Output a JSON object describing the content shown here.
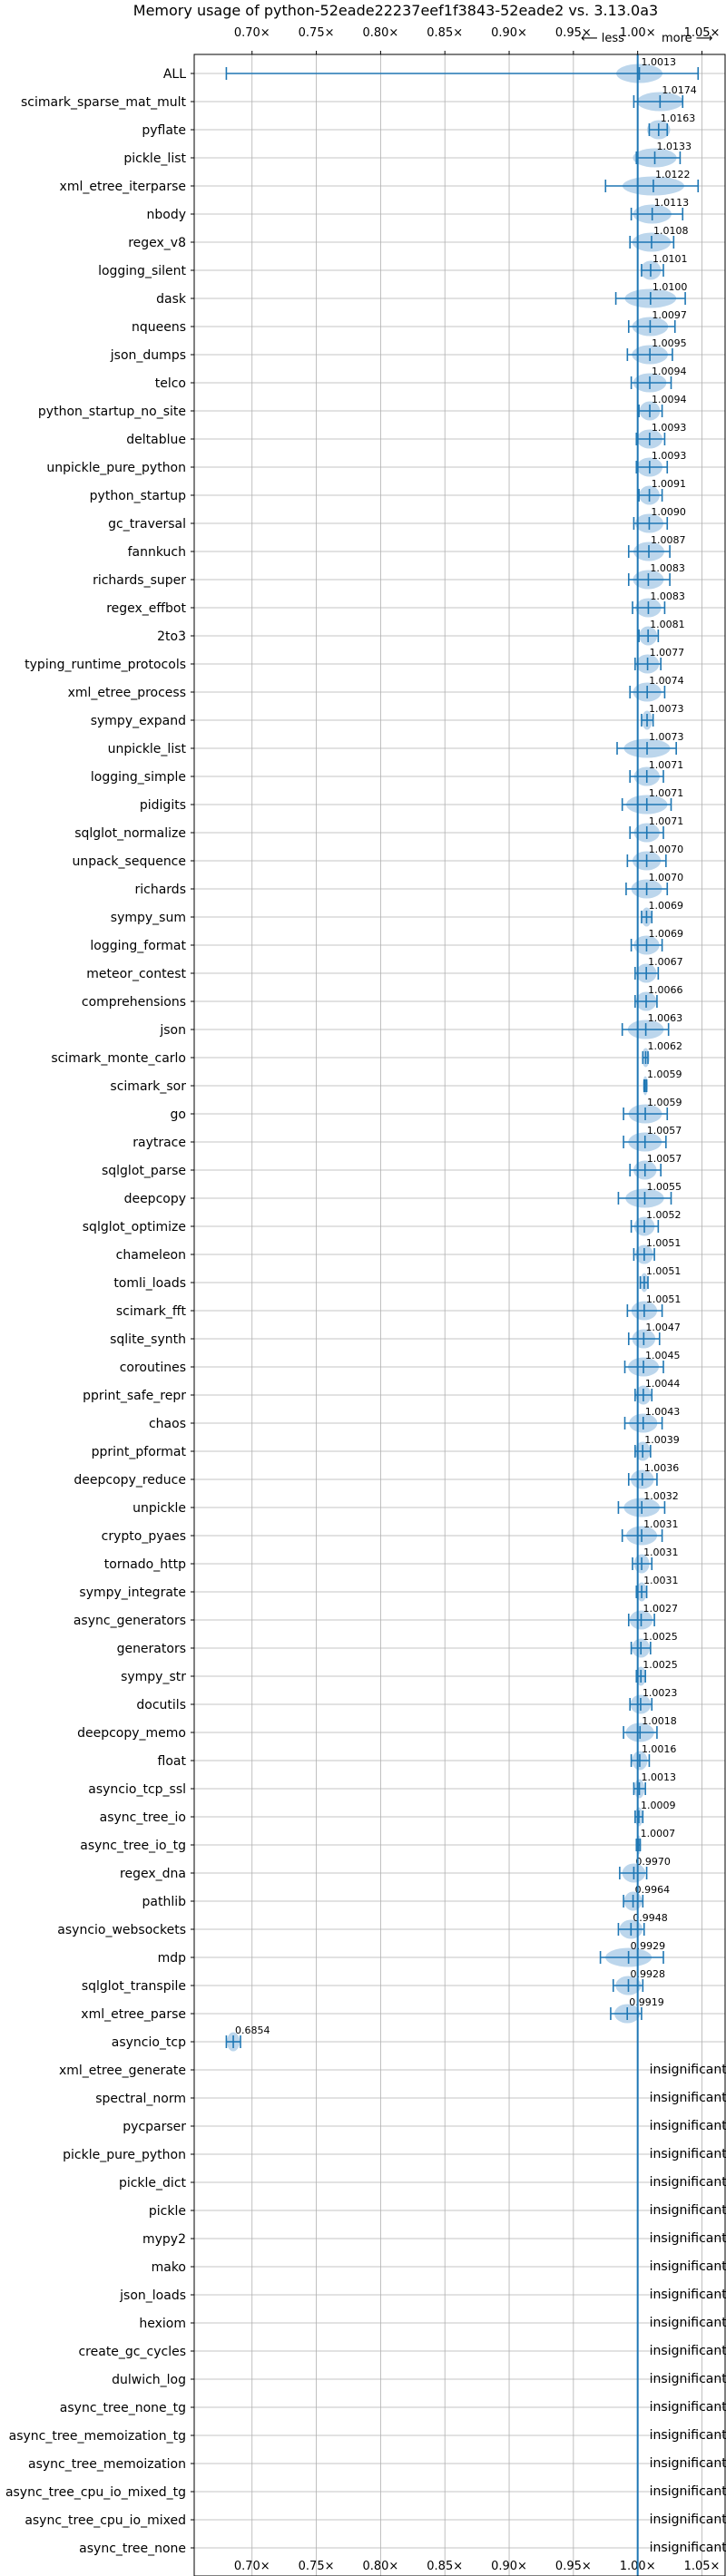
{
  "chart_data": {
    "type": "violin",
    "title": "Memory usage of python-52eade22237eef1f3843-52eade2 vs. 3.13.0a3",
    "direction_labels": [
      "⟵ less",
      "more ⟶"
    ],
    "xlim": [
      0.655,
      1.068
    ],
    "x_ticks": [
      0.7,
      0.75,
      0.8,
      0.85,
      0.9,
      0.95,
      1.0,
      1.05
    ],
    "x_tick_labels": [
      "0.70×",
      "0.75×",
      "0.80×",
      "0.85×",
      "0.90×",
      "0.95×",
      "1.00×",
      "1.05×"
    ],
    "reference_line": 1.0,
    "grid": true,
    "insignificant_label": "insignificant",
    "benchmarks": [
      {
        "name": "ALL",
        "value": "1.0013",
        "mean": 1.0013,
        "lo": 0.68,
        "hi": 1.047,
        "w": 0.018
      },
      {
        "name": "scimark_sparse_mat_mult",
        "value": "1.0174",
        "mean": 1.0174,
        "lo": 0.997,
        "hi": 1.035,
        "w": 0.018
      },
      {
        "name": "pyflate",
        "value": "1.0163",
        "mean": 1.0163,
        "lo": 1.009,
        "hi": 1.023,
        "w": 0.009
      },
      {
        "name": "pickle_list",
        "value": "1.0133",
        "mean": 1.0133,
        "lo": 0.999,
        "hi": 1.033,
        "w": 0.017
      },
      {
        "name": "xml_etree_iterparse",
        "value": "1.0122",
        "mean": 1.0122,
        "lo": 0.975,
        "hi": 1.047,
        "w": 0.024
      },
      {
        "name": "nbody",
        "value": "1.0113",
        "mean": 1.0113,
        "lo": 0.995,
        "hi": 1.035,
        "w": 0.015
      },
      {
        "name": "regex_v8",
        "value": "1.0108",
        "mean": 1.0108,
        "lo": 0.994,
        "hi": 1.028,
        "w": 0.015
      },
      {
        "name": "logging_silent",
        "value": "1.0101",
        "mean": 1.0101,
        "lo": 1.003,
        "hi": 1.02,
        "w": 0.008
      },
      {
        "name": "dask",
        "value": "1.0100",
        "mean": 1.01,
        "lo": 0.983,
        "hi": 1.037,
        "w": 0.02
      },
      {
        "name": "nqueens",
        "value": "1.0097",
        "mean": 1.0097,
        "lo": 0.993,
        "hi": 1.029,
        "w": 0.014
      },
      {
        "name": "json_dumps",
        "value": "1.0095",
        "mean": 1.0095,
        "lo": 0.992,
        "hi": 1.027,
        "w": 0.014
      },
      {
        "name": "telco",
        "value": "1.0094",
        "mean": 1.0094,
        "lo": 0.995,
        "hi": 1.026,
        "w": 0.013
      },
      {
        "name": "python_startup_no_site",
        "value": "1.0094",
        "mean": 1.0094,
        "lo": 1.001,
        "hi": 1.019,
        "w": 0.008
      },
      {
        "name": "deltablue",
        "value": "1.0093",
        "mean": 1.0093,
        "lo": 0.999,
        "hi": 1.021,
        "w": 0.01
      },
      {
        "name": "unpickle_pure_python",
        "value": "1.0093",
        "mean": 1.0093,
        "lo": 0.999,
        "hi": 1.023,
        "w": 0.01
      },
      {
        "name": "python_startup",
        "value": "1.0091",
        "mean": 1.0091,
        "lo": 1.001,
        "hi": 1.019,
        "w": 0.008
      },
      {
        "name": "gc_traversal",
        "value": "1.0090",
        "mean": 1.009,
        "lo": 0.997,
        "hi": 1.023,
        "w": 0.011
      },
      {
        "name": "fannkuch",
        "value": "1.0087",
        "mean": 1.0087,
        "lo": 0.993,
        "hi": 1.025,
        "w": 0.012
      },
      {
        "name": "richards_super",
        "value": "1.0083",
        "mean": 1.0083,
        "lo": 0.993,
        "hi": 1.025,
        "w": 0.012
      },
      {
        "name": "regex_effbot",
        "value": "1.0083",
        "mean": 1.0083,
        "lo": 0.996,
        "hi": 1.021,
        "w": 0.01
      },
      {
        "name": "2to3",
        "value": "1.0081",
        "mean": 1.0081,
        "lo": 1.001,
        "hi": 1.016,
        "w": 0.007
      },
      {
        "name": "typing_runtime_protocols",
        "value": "1.0077",
        "mean": 1.0077,
        "lo": 0.998,
        "hi": 1.018,
        "w": 0.009
      },
      {
        "name": "xml_etree_process",
        "value": "1.0074",
        "mean": 1.0074,
        "lo": 0.994,
        "hi": 1.021,
        "w": 0.011
      },
      {
        "name": "sympy_expand",
        "value": "1.0073",
        "mean": 1.0073,
        "lo": 1.003,
        "hi": 1.012,
        "w": 0.004
      },
      {
        "name": "unpickle_list",
        "value": "1.0073",
        "mean": 1.0073,
        "lo": 0.984,
        "hi": 1.03,
        "w": 0.018
      },
      {
        "name": "logging_simple",
        "value": "1.0071",
        "mean": 1.0071,
        "lo": 0.994,
        "hi": 1.02,
        "w": 0.01
      },
      {
        "name": "pidigits",
        "value": "1.0071",
        "mean": 1.0071,
        "lo": 0.988,
        "hi": 1.026,
        "w": 0.016
      },
      {
        "name": "sqlglot_normalize",
        "value": "1.0071",
        "mean": 1.0071,
        "lo": 0.994,
        "hi": 1.02,
        "w": 0.01
      },
      {
        "name": "unpack_sequence",
        "value": "1.0070",
        "mean": 1.007,
        "lo": 0.992,
        "hi": 1.022,
        "w": 0.011
      },
      {
        "name": "richards",
        "value": "1.0070",
        "mean": 1.007,
        "lo": 0.991,
        "hi": 1.023,
        "w": 0.012
      },
      {
        "name": "sympy_sum",
        "value": "1.0069",
        "mean": 1.0069,
        "lo": 1.003,
        "hi": 1.011,
        "w": 0.004
      },
      {
        "name": "logging_format",
        "value": "1.0069",
        "mean": 1.0069,
        "lo": 0.995,
        "hi": 1.019,
        "w": 0.01
      },
      {
        "name": "meteor_contest",
        "value": "1.0067",
        "mean": 1.0067,
        "lo": 0.998,
        "hi": 1.016,
        "w": 0.008
      },
      {
        "name": "comprehensions",
        "value": "1.0066",
        "mean": 1.0066,
        "lo": 0.998,
        "hi": 1.015,
        "w": 0.008
      },
      {
        "name": "json",
        "value": "1.0063",
        "mean": 1.0063,
        "lo": 0.988,
        "hi": 1.024,
        "w": 0.014
      },
      {
        "name": "scimark_monte_carlo",
        "value": "1.0062",
        "mean": 1.0062,
        "lo": 1.004,
        "hi": 1.008,
        "w": 0.003
      },
      {
        "name": "scimark_sor",
        "value": "1.0059",
        "mean": 1.0059,
        "lo": 1.005,
        "hi": 1.007,
        "w": 0.002
      },
      {
        "name": "go",
        "value": "1.0059",
        "mean": 1.0059,
        "lo": 0.989,
        "hi": 1.023,
        "w": 0.013
      },
      {
        "name": "raytrace",
        "value": "1.0057",
        "mean": 1.0057,
        "lo": 0.989,
        "hi": 1.022,
        "w": 0.013
      },
      {
        "name": "sqlglot_parse",
        "value": "1.0057",
        "mean": 1.0057,
        "lo": 0.994,
        "hi": 1.018,
        "w": 0.009
      },
      {
        "name": "deepcopy",
        "value": "1.0055",
        "mean": 1.0055,
        "lo": 0.985,
        "hi": 1.026,
        "w": 0.015
      },
      {
        "name": "sqlglot_optimize",
        "value": "1.0052",
        "mean": 1.0052,
        "lo": 0.995,
        "hi": 1.016,
        "w": 0.008
      },
      {
        "name": "chameleon",
        "value": "1.0051",
        "mean": 1.0051,
        "lo": 0.997,
        "hi": 1.013,
        "w": 0.007
      },
      {
        "name": "tomli_loads",
        "value": "1.0051",
        "mean": 1.0051,
        "lo": 1.002,
        "hi": 1.008,
        "w": 0.003
      },
      {
        "name": "scimark_fft",
        "value": "1.0051",
        "mean": 1.0051,
        "lo": 0.992,
        "hi": 1.019,
        "w": 0.01
      },
      {
        "name": "sqlite_synth",
        "value": "1.0047",
        "mean": 1.0047,
        "lo": 0.993,
        "hi": 1.017,
        "w": 0.009
      },
      {
        "name": "coroutines",
        "value": "1.0045",
        "mean": 1.0045,
        "lo": 0.99,
        "hi": 1.02,
        "w": 0.012
      },
      {
        "name": "pprint_safe_repr",
        "value": "1.0044",
        "mean": 1.0044,
        "lo": 0.998,
        "hi": 1.011,
        "w": 0.006
      },
      {
        "name": "chaos",
        "value": "1.0043",
        "mean": 1.0043,
        "lo": 0.99,
        "hi": 1.019,
        "w": 0.011
      },
      {
        "name": "pprint_pformat",
        "value": "1.0039",
        "mean": 1.0039,
        "lo": 0.998,
        "hi": 1.01,
        "w": 0.006
      },
      {
        "name": "deepcopy_reduce",
        "value": "1.0036",
        "mean": 1.0036,
        "lo": 0.993,
        "hi": 1.015,
        "w": 0.009
      },
      {
        "name": "unpickle",
        "value": "1.0032",
        "mean": 1.0032,
        "lo": 0.985,
        "hi": 1.021,
        "w": 0.014
      },
      {
        "name": "crypto_pyaes",
        "value": "1.0031",
        "mean": 1.0031,
        "lo": 0.988,
        "hi": 1.019,
        "w": 0.012
      },
      {
        "name": "tornado_http",
        "value": "1.0031",
        "mean": 1.0031,
        "lo": 0.996,
        "hi": 1.011,
        "w": 0.006
      },
      {
        "name": "sympy_integrate",
        "value": "1.0031",
        "mean": 1.0031,
        "lo": 0.999,
        "hi": 1.007,
        "w": 0.004
      },
      {
        "name": "async_generators",
        "value": "1.0027",
        "mean": 1.0027,
        "lo": 0.993,
        "hi": 1.013,
        "w": 0.009
      },
      {
        "name": "generators",
        "value": "1.0025",
        "mean": 1.0025,
        "lo": 0.995,
        "hi": 1.01,
        "w": 0.007
      },
      {
        "name": "sympy_str",
        "value": "1.0025",
        "mean": 1.0025,
        "lo": 0.999,
        "hi": 1.006,
        "w": 0.004
      },
      {
        "name": "docutils",
        "value": "1.0023",
        "mean": 1.0023,
        "lo": 0.994,
        "hi": 1.011,
        "w": 0.008
      },
      {
        "name": "deepcopy_memo",
        "value": "1.0018",
        "mean": 1.0018,
        "lo": 0.989,
        "hi": 1.015,
        "w": 0.011
      },
      {
        "name": "float",
        "value": "1.0016",
        "mean": 1.0016,
        "lo": 0.995,
        "hi": 1.009,
        "w": 0.006
      },
      {
        "name": "asyncio_tcp_ssl",
        "value": "1.0013",
        "mean": 1.0013,
        "lo": 0.997,
        "hi": 1.006,
        "w": 0.004
      },
      {
        "name": "async_tree_io",
        "value": "1.0009",
        "mean": 1.0009,
        "lo": 0.998,
        "hi": 1.004,
        "w": 0.003
      },
      {
        "name": "async_tree_io_tg",
        "value": "1.0007",
        "mean": 1.0007,
        "lo": 0.999,
        "hi": 1.002,
        "w": 0.002
      },
      {
        "name": "regex_dna",
        "value": "0.9970",
        "mean": 0.997,
        "lo": 0.986,
        "hi": 1.007,
        "w": 0.009
      },
      {
        "name": "pathlib",
        "value": "0.9964",
        "mean": 0.9964,
        "lo": 0.989,
        "hi": 1.004,
        "w": 0.007
      },
      {
        "name": "asyncio_websockets",
        "value": "0.9948",
        "mean": 0.9948,
        "lo": 0.985,
        "hi": 1.005,
        "w": 0.009
      },
      {
        "name": "mdp",
        "value": "0.9929",
        "mean": 0.9929,
        "lo": 0.971,
        "hi": 1.02,
        "w": 0.018
      },
      {
        "name": "sqlglot_transpile",
        "value": "0.9928",
        "mean": 0.9928,
        "lo": 0.981,
        "hi": 1.004,
        "w": 0.01
      },
      {
        "name": "xml_etree_parse",
        "value": "0.9919",
        "mean": 0.9919,
        "lo": 0.979,
        "hi": 1.003,
        "w": 0.01
      },
      {
        "name": "asyncio_tcp",
        "value": "0.6854",
        "mean": 0.6854,
        "lo": 0.68,
        "hi": 0.691,
        "w": 0.005
      },
      {
        "name": "xml_etree_generate",
        "value": "insignificant"
      },
      {
        "name": "spectral_norm",
        "value": "insignificant"
      },
      {
        "name": "pycparser",
        "value": "insignificant"
      },
      {
        "name": "pickle_pure_python",
        "value": "insignificant"
      },
      {
        "name": "pickle_dict",
        "value": "insignificant"
      },
      {
        "name": "pickle",
        "value": "insignificant"
      },
      {
        "name": "mypy2",
        "value": "insignificant"
      },
      {
        "name": "mako",
        "value": "insignificant"
      },
      {
        "name": "json_loads",
        "value": "insignificant"
      },
      {
        "name": "hexiom",
        "value": "insignificant"
      },
      {
        "name": "create_gc_cycles",
        "value": "insignificant"
      },
      {
        "name": "dulwich_log",
        "value": "insignificant"
      },
      {
        "name": "async_tree_none_tg",
        "value": "insignificant"
      },
      {
        "name": "async_tree_memoization_tg",
        "value": "insignificant"
      },
      {
        "name": "async_tree_memoization",
        "value": "insignificant"
      },
      {
        "name": "async_tree_cpu_io_mixed_tg",
        "value": "insignificant"
      },
      {
        "name": "async_tree_cpu_io_mixed",
        "value": "insignificant"
      },
      {
        "name": "async_tree_none",
        "value": "insignificant"
      }
    ],
    "colors": {
      "line": "#1f77b4",
      "violin": "#a6c8e6",
      "grid": "#b0b0b0",
      "text": "#000000"
    }
  }
}
